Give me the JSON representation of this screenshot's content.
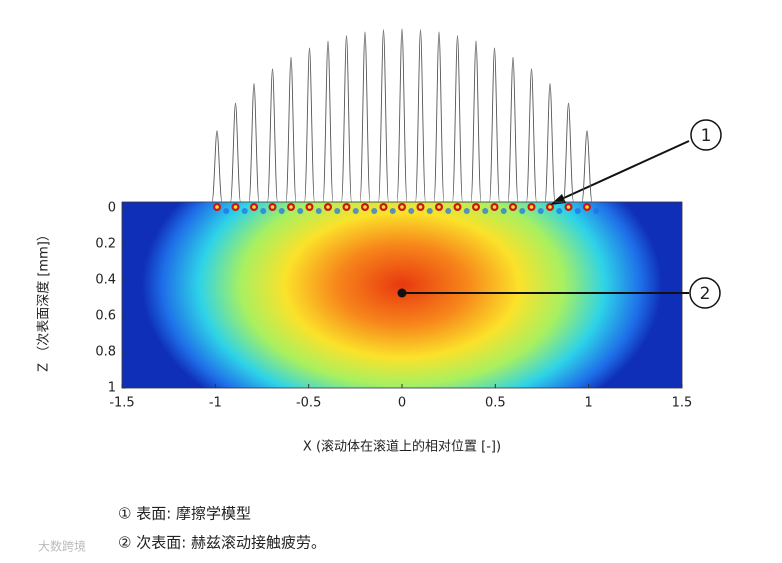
{
  "chart_data": {
    "type": "heatmap",
    "xlabel": "X (滚动体在滚道上的相对位置 [-])",
    "ylabel": "Z （次表面深度 [mm]）",
    "xlim": [
      -1.5,
      1.5
    ],
    "xticks": [
      -1.5,
      -1,
      -0.5,
      0,
      0.5,
      1,
      1.5
    ],
    "ylim": [
      0,
      1
    ],
    "yticks": [
      0,
      0.2,
      0.4,
      0.6,
      0.8,
      1
    ],
    "y_inverted": true,
    "annotations": [
      {
        "label": "1"
      },
      {
        "label": "2"
      }
    ],
    "captions": [
      "① 表面: 摩擦学模型",
      "② 次表面: 赫兹滚动接触疲劳。"
    ],
    "watermark": "大数跨境"
  }
}
